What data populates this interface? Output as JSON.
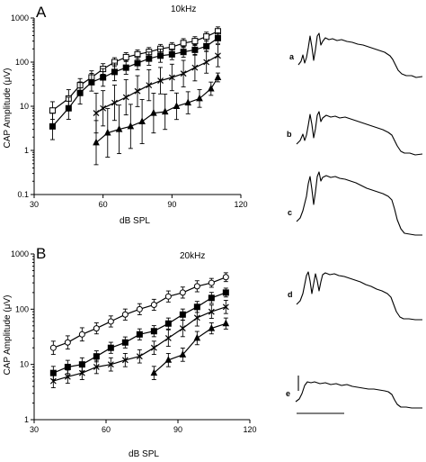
{
  "chart_data": [
    {
      "type": "line",
      "panel": "A",
      "annotation": "10kHz",
      "xlabel": "dB SPL",
      "ylabel": "CAP Amplitude (μV)",
      "xlim": [
        30,
        120
      ],
      "ylim": [
        0.1,
        1000
      ],
      "yscale": "log",
      "xticks": [
        "30",
        "60",
        "90",
        "120"
      ],
      "yticks": [
        "0.1",
        "1",
        "10",
        "100",
        "1000"
      ],
      "series": [
        {
          "marker": "open-square",
          "x": [
            38,
            45,
            50,
            55,
            60,
            65,
            70,
            75,
            80,
            85,
            90,
            95,
            100,
            105,
            110
          ],
          "y": [
            8,
            15,
            30,
            45,
            70,
            100,
            130,
            150,
            170,
            200,
            220,
            270,
            300,
            380,
            500
          ],
          "err": [
            0.2,
            0.2,
            0.15,
            0.15,
            0.12,
            0.1,
            0.1,
            0.1,
            0.1,
            0.1,
            0.1,
            0.1,
            0.1,
            0.1,
            0.1
          ]
        },
        {
          "marker": "filled-square",
          "x": [
            38,
            45,
            50,
            55,
            60,
            65,
            70,
            75,
            80,
            85,
            90,
            95,
            100,
            105,
            110
          ],
          "y": [
            3.5,
            9,
            20,
            35,
            45,
            60,
            75,
            95,
            120,
            140,
            150,
            170,
            190,
            230,
            350
          ],
          "err": [
            0.3,
            0.25,
            0.25,
            0.2,
            0.2,
            0.2,
            0.15,
            0.15,
            0.15,
            0.15,
            0.12,
            0.12,
            0.12,
            0.12,
            0.12
          ]
        },
        {
          "marker": "x",
          "x": [
            57,
            60,
            65,
            70,
            75,
            80,
            85,
            90,
            95,
            100,
            105,
            110
          ],
          "y": [
            7,
            9,
            12,
            16,
            22,
            30,
            38,
            45,
            55,
            75,
            100,
            140
          ],
          "err": [
            0.45,
            0.4,
            0.4,
            0.4,
            0.35,
            0.35,
            0.3,
            0.3,
            0.3,
            0.3,
            0.25,
            0.25
          ]
        },
        {
          "marker": "filled-triangle",
          "x": [
            57,
            62,
            67,
            72,
            77,
            82,
            87,
            92,
            97,
            102,
            107,
            110
          ],
          "y": [
            1.5,
            2.5,
            3,
            3.5,
            4.5,
            7,
            7.5,
            10,
            12,
            15,
            25,
            45
          ],
          "err": [
            0.5,
            0.55,
            0.55,
            0.5,
            0.5,
            0.45,
            0.4,
            0.3,
            0.25,
            0.2,
            0.15,
            0.1
          ]
        }
      ]
    },
    {
      "type": "line",
      "panel": "B",
      "annotation": "20kHz",
      "xlabel": "dB SPL",
      "ylabel": "CAP Amplitude (μV)",
      "xlim": [
        30,
        120
      ],
      "ylim": [
        1,
        1000
      ],
      "yscale": "log",
      "xticks": [
        "30",
        "60",
        "90",
        "120"
      ],
      "yticks": [
        "1",
        "10",
        "100",
        "1000"
      ],
      "series": [
        {
          "marker": "open-circle",
          "x": [
            38,
            44,
            50,
            56,
            62,
            68,
            74,
            80,
            86,
            92,
            98,
            104,
            110
          ],
          "y": [
            20,
            25,
            35,
            45,
            60,
            80,
            100,
            120,
            170,
            200,
            260,
            300,
            380
          ],
          "err": [
            0.12,
            0.12,
            0.12,
            0.1,
            0.1,
            0.1,
            0.1,
            0.1,
            0.1,
            0.1,
            0.1,
            0.08,
            0.08
          ]
        },
        {
          "marker": "filled-square",
          "x": [
            38,
            44,
            50,
            56,
            62,
            68,
            74,
            80,
            86,
            92,
            98,
            104,
            110
          ],
          "y": [
            7,
            9,
            10,
            14,
            20,
            25,
            35,
            40,
            55,
            80,
            110,
            160,
            200
          ],
          "err": [
            0.12,
            0.12,
            0.12,
            0.1,
            0.1,
            0.1,
            0.1,
            0.1,
            0.1,
            0.1,
            0.1,
            0.1,
            0.08
          ]
        },
        {
          "marker": "x",
          "x": [
            38,
            44,
            50,
            56,
            62,
            68,
            74,
            80,
            86,
            92,
            98,
            104,
            110
          ],
          "y": [
            5,
            6,
            7,
            9,
            10,
            12,
            14,
            20,
            30,
            45,
            70,
            90,
            110
          ],
          "err": [
            0.12,
            0.12,
            0.12,
            0.12,
            0.12,
            0.12,
            0.12,
            0.12,
            0.15,
            0.15,
            0.15,
            0.12,
            0.12
          ]
        },
        {
          "marker": "filled-triangle",
          "x": [
            80,
            86,
            92,
            98,
            104,
            110
          ],
          "y": [
            7,
            12,
            15,
            30,
            45,
            55
          ],
          "err": [
            0.12,
            0.12,
            0.12,
            0.12,
            0.1,
            0.1
          ]
        }
      ]
    }
  ],
  "panels": {
    "a": {
      "letter": "A",
      "freq": "10kHz"
    },
    "b": {
      "letter": "B",
      "freq": "20kHz"
    }
  },
  "axes": {
    "xlabel": "dB SPL",
    "ylabel": "CAP Amplitude (μV)"
  },
  "traces": [
    {
      "label": "a"
    },
    {
      "label": "b"
    },
    {
      "label": "c"
    },
    {
      "label": "d"
    },
    {
      "label": "e"
    }
  ]
}
